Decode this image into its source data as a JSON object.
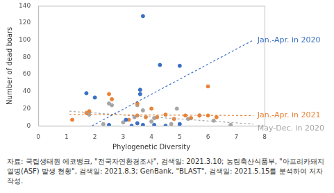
{
  "chart_data": {
    "type": "scatter",
    "x_label": "Phylogenetic Diversity",
    "y_label": "Number of dead boars",
    "xlim": [
      0,
      8
    ],
    "xticks": [
      0,
      1,
      2,
      3,
      4,
      5,
      6,
      7,
      8
    ],
    "ylim": [
      0,
      140
    ],
    "yticks": [
      0,
      20,
      40,
      60,
      80,
      100,
      120,
      140
    ],
    "grid": false,
    "series": [
      {
        "name": "Jan.-Apr. in 2020",
        "color": "#3a6fc4",
        "marker": "circle",
        "x": [
          1.7,
          2.0,
          2.5,
          3.1,
          3.3,
          3.5,
          3.6,
          3.6,
          3.7,
          3.7,
          4.1,
          4.3,
          4.5,
          5.0,
          5.0
        ],
        "values": [
          38,
          33,
          1,
          7,
          0,
          3,
          42,
          37,
          128,
          1,
          1,
          71,
          0,
          70,
          2
        ],
        "trend_x": [
          1.9,
          7.6
        ],
        "trend_values": [
          0,
          100
        ]
      },
      {
        "name": "Jan.-Apr. in 2021",
        "color": "#e8833a",
        "marker": "circle",
        "x": [
          1.2,
          1.7,
          1.8,
          2.5,
          2.6,
          3.2,
          3.5,
          3.5,
          3.8,
          4.0,
          4.2,
          4.5,
          4.8,
          5.2,
          5.4,
          5.7,
          6.0,
          6.0,
          6.3
        ],
        "values": [
          7,
          15,
          17,
          37,
          31,
          7,
          26,
          12,
          10,
          20,
          10,
          13,
          8,
          12,
          9,
          12,
          46,
          12,
          10
        ],
        "trend_x": [
          1.1,
          7.6
        ],
        "trend_values": [
          13,
          12
        ]
      },
      {
        "name": "May-Dec. in 2020",
        "color": "#a5a5a5",
        "marker": "circle",
        "x": [
          1.8,
          2.3,
          2.5,
          2.6,
          3.0,
          3.4,
          3.5,
          3.7,
          4.0,
          4.1,
          4.7,
          4.9,
          5.3,
          5.7,
          6.2,
          6.8
        ],
        "values": [
          13,
          2,
          26,
          24,
          4,
          10,
          24,
          18,
          5,
          9,
          2,
          20,
          8,
          12,
          6,
          1
        ],
        "trend_x": [
          1.1,
          7.6
        ],
        "trend_values": [
          17,
          2
        ]
      }
    ],
    "source": "자료: 국립생태원 에코뱅크, \"전국자연환경조사\", 검색일: 2021.3.10; 농림축산식품부, \"아프리카돼지열병(ASF) 발생 현황\", 검색일: 2021.8.3; GenBank, \"BLAST\", 검색일: 2021.5.15를 분석하여 저자 작성."
  }
}
